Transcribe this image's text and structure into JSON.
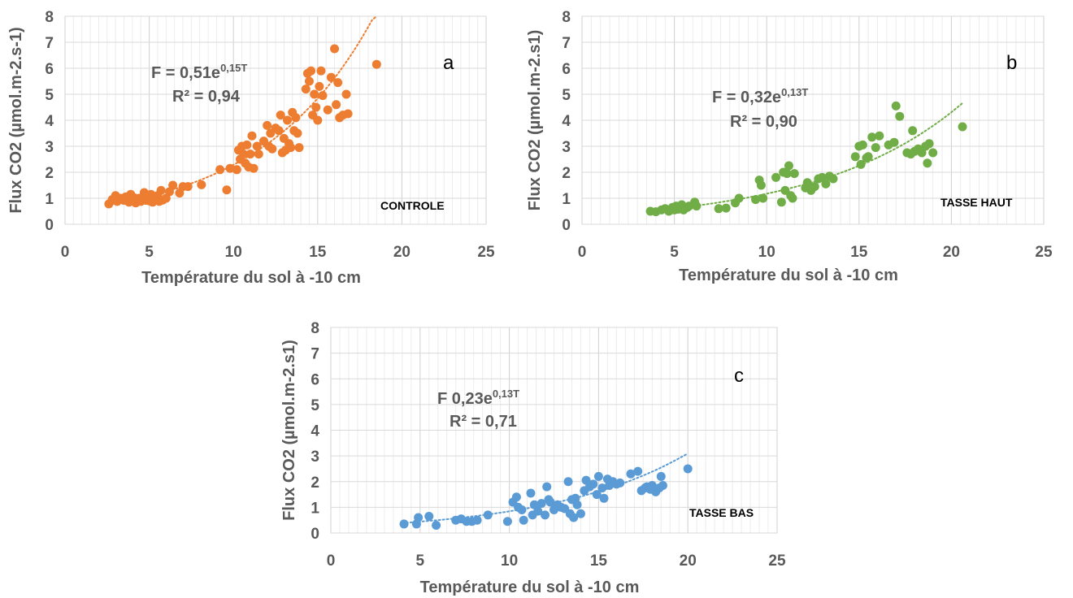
{
  "chart_data": [
    {
      "type": "scatter",
      "panel": "a",
      "tag": "CONTROLE",
      "xlabel": "Température du sol à -10 cm",
      "ylabel": "Flux CO2 (µmol.m-2.s-1)",
      "xlim": [
        0,
        25
      ],
      "ylim": [
        0,
        8
      ],
      "xticks": [
        "0",
        "5",
        "10",
        "15",
        "20",
        "25"
      ],
      "yticks": [
        "0",
        "1",
        "2",
        "3",
        "4",
        "5",
        "6",
        "7",
        "8"
      ],
      "grid": true,
      "color": "#ED7D31",
      "equation": {
        "main": "F = 0,51e",
        "sup": "0,15T",
        "r2": "R² = 0,94"
      },
      "trend": {
        "a": 0.51,
        "b": 0.15,
        "x_range": [
          2.6,
          18.5
        ]
      },
      "points": [
        [
          2.6,
          0.78
        ],
        [
          2.8,
          0.95
        ],
        [
          3.0,
          1.1
        ],
        [
          3.1,
          0.88
        ],
        [
          3.3,
          1.0
        ],
        [
          3.5,
          0.92
        ],
        [
          3.6,
          1.05
        ],
        [
          3.8,
          0.85
        ],
        [
          3.9,
          1.15
        ],
        [
          4.0,
          0.95
        ],
        [
          4.1,
          1.02
        ],
        [
          4.2,
          0.82
        ],
        [
          4.3,
          0.9
        ],
        [
          4.4,
          1.0
        ],
        [
          4.5,
          0.88
        ],
        [
          4.6,
          0.95
        ],
        [
          4.7,
          1.22
        ],
        [
          4.8,
          0.92
        ],
        [
          4.9,
          1.05
        ],
        [
          5.0,
          0.9
        ],
        [
          5.1,
          1.15
        ],
        [
          5.2,
          0.85
        ],
        [
          5.3,
          1.0
        ],
        [
          5.4,
          0.95
        ],
        [
          5.5,
          1.1
        ],
        [
          5.6,
          0.88
        ],
        [
          5.7,
          1.3
        ],
        [
          5.8,
          0.93
        ],
        [
          6.0,
          1.0
        ],
        [
          6.2,
          1.25
        ],
        [
          6.4,
          1.5
        ],
        [
          6.8,
          1.2
        ],
        [
          7.0,
          1.45
        ],
        [
          7.3,
          1.45
        ],
        [
          8.1,
          1.52
        ],
        [
          9.2,
          2.1
        ],
        [
          9.6,
          1.32
        ],
        [
          9.8,
          2.15
        ],
        [
          10.2,
          2.1
        ],
        [
          10.3,
          2.85
        ],
        [
          10.4,
          2.5
        ],
        [
          10.5,
          3.0
        ],
        [
          10.6,
          2.7
        ],
        [
          10.7,
          2.35
        ],
        [
          10.8,
          3.05
        ],
        [
          10.9,
          2.2
        ],
        [
          11.0,
          2.7
        ],
        [
          11.1,
          3.4
        ],
        [
          11.2,
          2.15
        ],
        [
          11.4,
          3.0
        ],
        [
          11.5,
          2.7
        ],
        [
          11.8,
          3.2
        ],
        [
          12.0,
          3.8
        ],
        [
          12.1,
          3.0
        ],
        [
          12.2,
          3.5
        ],
        [
          12.3,
          2.9
        ],
        [
          12.5,
          3.7
        ],
        [
          12.7,
          3.6
        ],
        [
          12.8,
          4.2
        ],
        [
          12.9,
          2.75
        ],
        [
          13.0,
          3.3
        ],
        [
          13.1,
          2.85
        ],
        [
          13.2,
          4.0
        ],
        [
          13.3,
          3.1
        ],
        [
          13.4,
          2.95
        ],
        [
          13.5,
          4.3
        ],
        [
          13.6,
          3.6
        ],
        [
          13.7,
          4.1
        ],
        [
          13.8,
          3.5
        ],
        [
          13.9,
          2.95
        ],
        [
          14.3,
          5.2
        ],
        [
          14.4,
          5.8
        ],
        [
          14.5,
          5.5
        ],
        [
          14.6,
          5.9
        ],
        [
          14.7,
          4.2
        ],
        [
          14.8,
          5.0
        ],
        [
          14.9,
          4.5
        ],
        [
          15.0,
          4.0
        ],
        [
          15.1,
          5.3
        ],
        [
          15.2,
          5.9
        ],
        [
          15.3,
          4.95
        ],
        [
          15.6,
          4.4
        ],
        [
          15.8,
          5.65
        ],
        [
          16.0,
          6.75
        ],
        [
          16.1,
          4.6
        ],
        [
          16.2,
          5.45
        ],
        [
          16.3,
          4.1
        ],
        [
          16.5,
          4.2
        ],
        [
          16.7,
          5.0
        ],
        [
          16.8,
          4.25
        ],
        [
          18.5,
          6.15
        ]
      ]
    },
    {
      "type": "scatter",
      "panel": "b",
      "tag": "TASSE HAUT",
      "xlabel": "Température du sol à -10 cm",
      "ylabel": "Flux CO2 (µmol.m-2.s1)",
      "xlim": [
        0,
        25
      ],
      "ylim": [
        0,
        8
      ],
      "xticks": [
        "0",
        "5",
        "10",
        "15",
        "20",
        "25"
      ],
      "yticks": [
        "0",
        "1",
        "2",
        "3",
        "4",
        "5",
        "6",
        "7",
        "8"
      ],
      "grid": true,
      "color": "#70AD47",
      "equation": {
        "main": "F = 0,32e",
        "sup": "0,13T",
        "r2": "R² = 0,90"
      },
      "trend": {
        "a": 0.32,
        "b": 0.13,
        "x_range": [
          3.7,
          20.6
        ]
      },
      "points": [
        [
          3.7,
          0.5
        ],
        [
          4.0,
          0.48
        ],
        [
          4.3,
          0.55
        ],
        [
          4.5,
          0.6
        ],
        [
          4.7,
          0.5
        ],
        [
          4.9,
          0.65
        ],
        [
          5.0,
          0.55
        ],
        [
          5.1,
          0.7
        ],
        [
          5.2,
          0.58
        ],
        [
          5.3,
          0.6
        ],
        [
          5.4,
          0.75
        ],
        [
          5.5,
          0.55
        ],
        [
          5.6,
          0.62
        ],
        [
          5.7,
          0.65
        ],
        [
          5.8,
          0.7
        ],
        [
          6.1,
          0.85
        ],
        [
          6.2,
          0.7
        ],
        [
          7.4,
          0.6
        ],
        [
          7.8,
          0.62
        ],
        [
          8.3,
          0.82
        ],
        [
          8.5,
          1.0
        ],
        [
          9.4,
          0.95
        ],
        [
          9.6,
          1.7
        ],
        [
          9.7,
          1.5
        ],
        [
          9.8,
          1.0
        ],
        [
          10.5,
          1.8
        ],
        [
          10.8,
          0.85
        ],
        [
          10.9,
          2.0
        ],
        [
          11.0,
          1.3
        ],
        [
          11.1,
          1.95
        ],
        [
          11.2,
          2.25
        ],
        [
          11.3,
          1.1
        ],
        [
          11.4,
          1.0
        ],
        [
          11.5,
          1.95
        ],
        [
          12.1,
          1.4
        ],
        [
          12.2,
          1.6
        ],
        [
          12.4,
          1.3
        ],
        [
          12.6,
          1.45
        ],
        [
          12.8,
          1.75
        ],
        [
          13.0,
          1.8
        ],
        [
          13.2,
          1.55
        ],
        [
          13.4,
          1.85
        ],
        [
          13.6,
          1.75
        ],
        [
          14.8,
          2.6
        ],
        [
          15.0,
          3.0
        ],
        [
          15.1,
          2.3
        ],
        [
          15.2,
          3.05
        ],
        [
          15.4,
          2.55
        ],
        [
          15.5,
          2.6
        ],
        [
          15.7,
          3.35
        ],
        [
          15.9,
          2.95
        ],
        [
          16.1,
          3.4
        ],
        [
          16.6,
          3.05
        ],
        [
          16.9,
          3.15
        ],
        [
          17.0,
          4.55
        ],
        [
          17.2,
          4.15
        ],
        [
          17.6,
          2.75
        ],
        [
          17.8,
          2.7
        ],
        [
          17.9,
          3.6
        ],
        [
          18.0,
          2.8
        ],
        [
          18.2,
          2.9
        ],
        [
          18.4,
          2.75
        ],
        [
          18.6,
          3.0
        ],
        [
          18.7,
          2.35
        ],
        [
          18.8,
          3.1
        ],
        [
          19.0,
          2.75
        ],
        [
          20.6,
          3.75
        ]
      ]
    },
    {
      "type": "scatter",
      "panel": "c",
      "tag": "TASSE BAS",
      "xlabel": "Température du sol à -10 cm",
      "ylabel": "Flux CO2 (µmol.m-2.s1)",
      "xlim": [
        0,
        25
      ],
      "ylim": [
        0,
        8
      ],
      "xticks": [
        "0",
        "5",
        "10",
        "15",
        "20",
        "25"
      ],
      "yticks": [
        "0",
        "1",
        "2",
        "3",
        "4",
        "5",
        "6",
        "7",
        "8"
      ],
      "grid": true,
      "color": "#5B9BD5",
      "equation": {
        "main": "F 0,23e",
        "sup": "0,13T",
        "r2": "R² = 0,71"
      },
      "trend": {
        "a": 0.23,
        "b": 0.13,
        "x_range": [
          4.0,
          20.0
        ]
      },
      "points": [
        [
          4.1,
          0.35
        ],
        [
          4.8,
          0.35
        ],
        [
          4.9,
          0.6
        ],
        [
          5.5,
          0.65
        ],
        [
          5.9,
          0.3
        ],
        [
          7.0,
          0.5
        ],
        [
          7.3,
          0.55
        ],
        [
          7.6,
          0.45
        ],
        [
          7.9,
          0.45
        ],
        [
          8.2,
          0.5
        ],
        [
          8.8,
          0.7
        ],
        [
          9.9,
          0.45
        ],
        [
          10.2,
          1.2
        ],
        [
          10.4,
          1.4
        ],
        [
          10.5,
          1.0
        ],
        [
          10.7,
          0.9
        ],
        [
          10.8,
          0.5
        ],
        [
          11.2,
          1.55
        ],
        [
          11.3,
          0.7
        ],
        [
          11.4,
          1.1
        ],
        [
          11.6,
          0.85
        ],
        [
          11.8,
          1.15
        ],
        [
          12.0,
          0.7
        ],
        [
          12.1,
          1.8
        ],
        [
          12.2,
          1.3
        ],
        [
          12.3,
          1.2
        ],
        [
          12.5,
          0.9
        ],
        [
          12.7,
          1.1
        ],
        [
          12.9,
          1.0
        ],
        [
          13.1,
          0.95
        ],
        [
          13.3,
          2.0
        ],
        [
          13.4,
          0.75
        ],
        [
          13.5,
          1.3
        ],
        [
          13.6,
          0.6
        ],
        [
          13.7,
          1.35
        ],
        [
          13.8,
          1.1
        ],
        [
          14.0,
          0.75
        ],
        [
          14.2,
          1.65
        ],
        [
          14.3,
          2.05
        ],
        [
          14.5,
          1.8
        ],
        [
          14.7,
          1.9
        ],
        [
          14.9,
          1.5
        ],
        [
          15.0,
          2.2
        ],
        [
          15.2,
          1.75
        ],
        [
          15.3,
          1.35
        ],
        [
          15.5,
          2.1
        ],
        [
          15.6,
          1.85
        ],
        [
          15.8,
          2.0
        ],
        [
          16.0,
          1.9
        ],
        [
          16.2,
          1.95
        ],
        [
          16.8,
          2.3
        ],
        [
          17.2,
          2.4
        ],
        [
          17.4,
          1.65
        ],
        [
          17.6,
          1.75
        ],
        [
          17.7,
          1.8
        ],
        [
          17.9,
          1.7
        ],
        [
          18.0,
          1.85
        ],
        [
          18.2,
          1.6
        ],
        [
          18.4,
          1.75
        ],
        [
          18.5,
          2.2
        ],
        [
          18.6,
          1.85
        ],
        [
          20.0,
          2.5
        ]
      ]
    }
  ]
}
